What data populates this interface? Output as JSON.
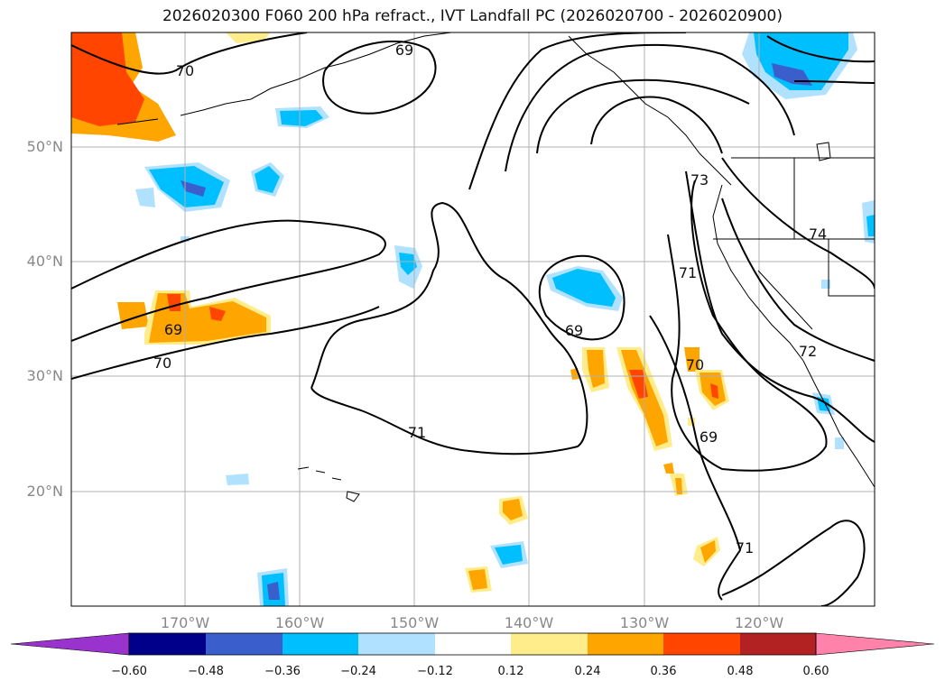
{
  "title": "2026020300 F060 200 hPa refract., IVT Landfall PC (2026020700 - 2026020900)",
  "map": {
    "projection": "platecarree",
    "lon_range": [
      -180,
      -110
    ],
    "lat_range": [
      10,
      60
    ],
    "lat_labels": [
      "20°N",
      "30°N",
      "40°N",
      "50°N"
    ],
    "lon_labels": [
      "170°W",
      "160°W",
      "150°W",
      "140°W",
      "130°W",
      "120°W"
    ],
    "gridlines": true,
    "contour_labels": [
      "69",
      "70",
      "69",
      "70",
      "71",
      "69",
      "70",
      "69",
      "71",
      "73",
      "74",
      "72",
      "71"
    ]
  },
  "colorbar": {
    "ticks": [
      "−0.60",
      "−0.48",
      "−0.36",
      "−0.24",
      "−0.12",
      "0.12",
      "0.24",
      "0.36",
      "0.48",
      "0.60"
    ],
    "colors": [
      "#9a32cd",
      "#00008b",
      "#3a5fcd",
      "#00bfff",
      "#b0e2ff",
      "#ffffff",
      "#ffec8b",
      "#ffa500",
      "#ff4500",
      "#b22222",
      "#ff82ab"
    ]
  }
}
